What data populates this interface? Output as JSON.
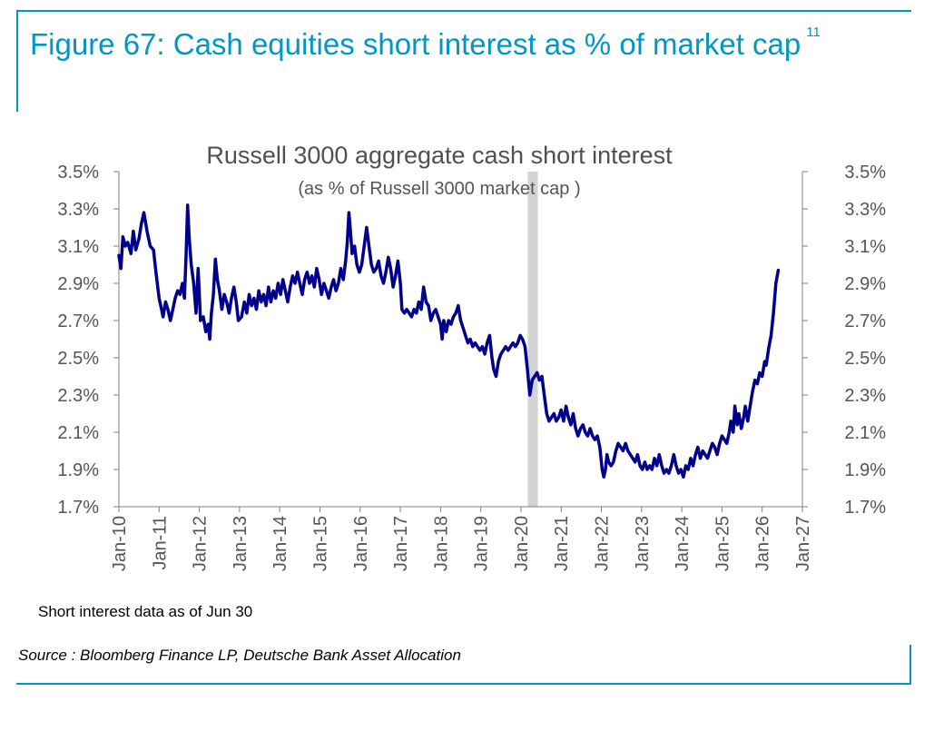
{
  "figure": {
    "title": "Figure 67: Cash equities short interest as % of market cap",
    "footnote_ref": "11",
    "note": "Short interest data as of Jun 30",
    "source": "Source : Bloomberg Finance LP, Deutsche Bank Asset Allocation"
  },
  "colors": {
    "accent": "#0097c4",
    "line": "#00008b",
    "shade": "#d3d3d3",
    "axis": "#808080"
  },
  "chart_data": {
    "type": "line",
    "title": "Russell 3000 aggregate cash short interest",
    "subtitle": "(as % of Russell 3000 market cap )",
    "xlabel": "",
    "ylabel": "",
    "ylim": [
      1.7,
      3.5
    ],
    "xlim": [
      2010.0,
      2027.0
    ],
    "grid": false,
    "y_ticks": [
      "1.7%",
      "1.9%",
      "2.1%",
      "2.3%",
      "2.5%",
      "2.7%",
      "2.9%",
      "3.1%",
      "3.3%",
      "3.5%"
    ],
    "y_tick_values": [
      1.7,
      1.9,
      2.1,
      2.3,
      2.5,
      2.7,
      2.9,
      3.1,
      3.3,
      3.5
    ],
    "x_ticks": [
      "Jan-10",
      "Jan-11",
      "Jan-12",
      "Jan-13",
      "Jan-14",
      "Jan-15",
      "Jan-16",
      "Jan-17",
      "Jan-18",
      "Jan-19",
      "Jan-20",
      "Jan-21",
      "Jan-22",
      "Jan-23",
      "Jan-24",
      "Jan-25",
      "Jan-26",
      "Jan-27"
    ],
    "x_tick_values": [
      2010,
      2011,
      2012,
      2013,
      2014,
      2015,
      2016,
      2017,
      2018,
      2019,
      2020,
      2021,
      2022,
      2023,
      2024,
      2025,
      2026,
      2027
    ],
    "shaded_region": [
      2020.17,
      2020.42
    ],
    "series": [
      {
        "points": [
          [
            2010.0,
            3.05
          ],
          [
            2010.05,
            2.98
          ],
          [
            2010.1,
            3.15
          ],
          [
            2010.16,
            3.1
          ],
          [
            2010.22,
            3.12
          ],
          [
            2010.3,
            3.06
          ],
          [
            2010.36,
            3.18
          ],
          [
            2010.42,
            3.08
          ],
          [
            2010.5,
            3.14
          ],
          [
            2010.56,
            3.22
          ],
          [
            2010.62,
            3.28
          ],
          [
            2010.7,
            3.18
          ],
          [
            2010.78,
            3.1
          ],
          [
            2010.86,
            3.08
          ],
          [
            2010.92,
            2.96
          ],
          [
            2011.0,
            2.82
          ],
          [
            2011.06,
            2.76
          ],
          [
            2011.1,
            2.72
          ],
          [
            2011.16,
            2.8
          ],
          [
            2011.22,
            2.76
          ],
          [
            2011.28,
            2.7
          ],
          [
            2011.34,
            2.76
          ],
          [
            2011.4,
            2.82
          ],
          [
            2011.46,
            2.86
          ],
          [
            2011.52,
            2.84
          ],
          [
            2011.58,
            2.9
          ],
          [
            2011.63,
            2.82
          ],
          [
            2011.67,
            3.05
          ],
          [
            2011.71,
            3.32
          ],
          [
            2011.75,
            3.14
          ],
          [
            2011.8,
            3.0
          ],
          [
            2011.86,
            2.9
          ],
          [
            2011.92,
            2.74
          ],
          [
            2011.97,
            2.98
          ],
          [
            2012.03,
            2.7
          ],
          [
            2012.1,
            2.72
          ],
          [
            2012.16,
            2.64
          ],
          [
            2012.22,
            2.68
          ],
          [
            2012.26,
            2.6
          ],
          [
            2012.3,
            2.74
          ],
          [
            2012.35,
            2.84
          ],
          [
            2012.4,
            3.03
          ],
          [
            2012.45,
            2.92
          ],
          [
            2012.5,
            2.86
          ],
          [
            2012.56,
            2.76
          ],
          [
            2012.62,
            2.84
          ],
          [
            2012.68,
            2.8
          ],
          [
            2012.74,
            2.74
          ],
          [
            2012.8,
            2.82
          ],
          [
            2012.86,
            2.88
          ],
          [
            2012.92,
            2.8
          ],
          [
            2012.97,
            2.7
          ],
          [
            2013.05,
            2.72
          ],
          [
            2013.12,
            2.8
          ],
          [
            2013.18,
            2.74
          ],
          [
            2013.24,
            2.84
          ],
          [
            2013.3,
            2.78
          ],
          [
            2013.36,
            2.82
          ],
          [
            2013.42,
            2.76
          ],
          [
            2013.48,
            2.86
          ],
          [
            2013.54,
            2.8
          ],
          [
            2013.6,
            2.84
          ],
          [
            2013.66,
            2.78
          ],
          [
            2013.72,
            2.88
          ],
          [
            2013.78,
            2.8
          ],
          [
            2013.84,
            2.86
          ],
          [
            2013.9,
            2.82
          ],
          [
            2013.96,
            2.9
          ],
          [
            2014.02,
            2.84
          ],
          [
            2014.08,
            2.92
          ],
          [
            2014.14,
            2.86
          ],
          [
            2014.2,
            2.8
          ],
          [
            2014.26,
            2.88
          ],
          [
            2014.32,
            2.94
          ],
          [
            2014.38,
            2.9
          ],
          [
            2014.44,
            2.96
          ],
          [
            2014.5,
            2.9
          ],
          [
            2014.56,
            2.84
          ],
          [
            2014.62,
            2.92
          ],
          [
            2014.68,
            2.96
          ],
          [
            2014.74,
            2.9
          ],
          [
            2014.8,
            2.94
          ],
          [
            2014.86,
            2.88
          ],
          [
            2014.92,
            2.98
          ],
          [
            2014.98,
            2.92
          ],
          [
            2015.04,
            2.84
          ],
          [
            2015.1,
            2.9
          ],
          [
            2015.16,
            2.86
          ],
          [
            2015.22,
            2.82
          ],
          [
            2015.28,
            2.88
          ],
          [
            2015.34,
            2.92
          ],
          [
            2015.4,
            2.86
          ],
          [
            2015.46,
            2.9
          ],
          [
            2015.52,
            2.98
          ],
          [
            2015.58,
            2.92
          ],
          [
            2015.64,
            3.02
          ],
          [
            2015.68,
            3.12
          ],
          [
            2015.72,
            3.28
          ],
          [
            2015.76,
            3.18
          ],
          [
            2015.8,
            3.06
          ],
          [
            2015.86,
            3.1
          ],
          [
            2015.92,
            3.0
          ],
          [
            2015.98,
            2.96
          ],
          [
            2016.04,
            3.0
          ],
          [
            2016.1,
            3.1
          ],
          [
            2016.16,
            3.2
          ],
          [
            2016.22,
            3.1
          ],
          [
            2016.28,
            3.0
          ],
          [
            2016.34,
            2.96
          ],
          [
            2016.4,
            2.98
          ],
          [
            2016.46,
            3.02
          ],
          [
            2016.52,
            2.94
          ],
          [
            2016.58,
            2.9
          ],
          [
            2016.64,
            2.96
          ],
          [
            2016.7,
            3.04
          ],
          [
            2016.76,
            2.98
          ],
          [
            2016.82,
            2.88
          ],
          [
            2016.88,
            2.94
          ],
          [
            2016.94,
            3.02
          ],
          [
            2017.0,
            2.9
          ],
          [
            2017.04,
            2.76
          ],
          [
            2017.1,
            2.74
          ],
          [
            2017.16,
            2.76
          ],
          [
            2017.22,
            2.74
          ],
          [
            2017.28,
            2.72
          ],
          [
            2017.34,
            2.76
          ],
          [
            2017.4,
            2.74
          ],
          [
            2017.46,
            2.8
          ],
          [
            2017.52,
            2.76
          ],
          [
            2017.58,
            2.88
          ],
          [
            2017.64,
            2.8
          ],
          [
            2017.7,
            2.78
          ],
          [
            2017.76,
            2.7
          ],
          [
            2017.82,
            2.74
          ],
          [
            2017.88,
            2.76
          ],
          [
            2017.94,
            2.72
          ],
          [
            2018.0,
            2.68
          ],
          [
            2018.04,
            2.6
          ],
          [
            2018.08,
            2.7
          ],
          [
            2018.14,
            2.64
          ],
          [
            2018.2,
            2.7
          ],
          [
            2018.26,
            2.68
          ],
          [
            2018.32,
            2.72
          ],
          [
            2018.38,
            2.74
          ],
          [
            2018.44,
            2.78
          ],
          [
            2018.5,
            2.7
          ],
          [
            2018.56,
            2.66
          ],
          [
            2018.62,
            2.62
          ],
          [
            2018.68,
            2.58
          ],
          [
            2018.74,
            2.6
          ],
          [
            2018.8,
            2.56
          ],
          [
            2018.86,
            2.58
          ],
          [
            2018.92,
            2.56
          ],
          [
            2018.98,
            2.54
          ],
          [
            2019.04,
            2.56
          ],
          [
            2019.1,
            2.52
          ],
          [
            2019.16,
            2.58
          ],
          [
            2019.22,
            2.62
          ],
          [
            2019.28,
            2.5
          ],
          [
            2019.32,
            2.44
          ],
          [
            2019.38,
            2.4
          ],
          [
            2019.44,
            2.48
          ],
          [
            2019.5,
            2.52
          ],
          [
            2019.56,
            2.54
          ],
          [
            2019.62,
            2.56
          ],
          [
            2019.68,
            2.54
          ],
          [
            2019.74,
            2.56
          ],
          [
            2019.8,
            2.58
          ],
          [
            2019.86,
            2.56
          ],
          [
            2019.92,
            2.58
          ],
          [
            2019.98,
            2.62
          ],
          [
            2020.04,
            2.6
          ],
          [
            2020.1,
            2.56
          ],
          [
            2020.16,
            2.44
          ],
          [
            2020.22,
            2.3
          ],
          [
            2020.28,
            2.38
          ],
          [
            2020.34,
            2.4
          ],
          [
            2020.4,
            2.42
          ],
          [
            2020.46,
            2.38
          ],
          [
            2020.52,
            2.4
          ],
          [
            2020.58,
            2.3
          ],
          [
            2020.64,
            2.2
          ],
          [
            2020.7,
            2.16
          ],
          [
            2020.76,
            2.18
          ],
          [
            2020.82,
            2.2
          ],
          [
            2020.88,
            2.16
          ],
          [
            2020.94,
            2.18
          ],
          [
            2021.0,
            2.22
          ],
          [
            2021.06,
            2.16
          ],
          [
            2021.12,
            2.24
          ],
          [
            2021.18,
            2.18
          ],
          [
            2021.24,
            2.14
          ],
          [
            2021.3,
            2.2
          ],
          [
            2021.36,
            2.12
          ],
          [
            2021.42,
            2.08
          ],
          [
            2021.48,
            2.12
          ],
          [
            2021.54,
            2.14
          ],
          [
            2021.6,
            2.1
          ],
          [
            2021.66,
            2.08
          ],
          [
            2021.72,
            2.12
          ],
          [
            2021.78,
            2.08
          ],
          [
            2021.84,
            2.06
          ],
          [
            2021.9,
            2.08
          ],
          [
            2021.96,
            2.02
          ],
          [
            2022.02,
            1.9
          ],
          [
            2022.06,
            1.86
          ],
          [
            2022.1,
            1.9
          ],
          [
            2022.14,
            1.98
          ],
          [
            2022.18,
            1.94
          ],
          [
            2022.24,
            1.92
          ],
          [
            2022.3,
            1.94
          ],
          [
            2022.36,
            2.0
          ],
          [
            2022.42,
            2.04
          ],
          [
            2022.48,
            2.02
          ],
          [
            2022.54,
            2.0
          ],
          [
            2022.6,
            2.04
          ],
          [
            2022.66,
            2.0
          ],
          [
            2022.72,
            1.98
          ],
          [
            2022.78,
            1.96
          ],
          [
            2022.84,
            1.94
          ],
          [
            2022.9,
            1.98
          ],
          [
            2022.96,
            1.92
          ],
          [
            2023.02,
            1.9
          ],
          [
            2023.08,
            1.94
          ],
          [
            2023.14,
            1.9
          ],
          [
            2023.2,
            1.92
          ],
          [
            2023.26,
            1.9
          ],
          [
            2023.32,
            1.96
          ],
          [
            2023.38,
            1.92
          ],
          [
            2023.44,
            1.98
          ],
          [
            2023.5,
            1.92
          ],
          [
            2023.56,
            1.88
          ],
          [
            2023.62,
            1.9
          ],
          [
            2023.68,
            1.88
          ],
          [
            2023.74,
            1.92
          ],
          [
            2023.8,
            1.98
          ],
          [
            2023.86,
            1.92
          ],
          [
            2023.92,
            1.88
          ],
          [
            2023.98,
            1.9
          ],
          [
            2024.04,
            1.86
          ],
          [
            2024.1,
            1.92
          ],
          [
            2024.16,
            1.9
          ],
          [
            2024.22,
            1.96
          ],
          [
            2024.28,
            1.92
          ],
          [
            2024.34,
            1.98
          ],
          [
            2024.4,
            2.02
          ],
          [
            2024.46,
            1.96
          ],
          [
            2024.52,
            2.0
          ],
          [
            2024.58,
            1.98
          ],
          [
            2024.64,
            1.96
          ],
          [
            2024.7,
            2.0
          ],
          [
            2024.76,
            2.04
          ],
          [
            2024.82,
            2.02
          ],
          [
            2024.88,
            1.98
          ],
          [
            2024.94,
            2.04
          ],
          [
            2025.0,
            2.08
          ],
          [
            2025.06,
            2.06
          ],
          [
            2025.12,
            2.04
          ],
          [
            2025.18,
            2.1
          ],
          [
            2025.22,
            2.16
          ],
          [
            2025.28,
            2.1
          ],
          [
            2025.32,
            2.24
          ],
          [
            2025.38,
            2.14
          ],
          [
            2025.42,
            2.2
          ],
          [
            2025.48,
            2.12
          ],
          [
            2025.54,
            2.18
          ],
          [
            2025.58,
            2.24
          ],
          [
            2025.64,
            2.16
          ],
          [
            2025.7,
            2.24
          ],
          [
            2025.76,
            2.32
          ],
          [
            2025.82,
            2.38
          ],
          [
            2025.88,
            2.36
          ],
          [
            2025.94,
            2.42
          ],
          [
            2026.0,
            2.4
          ],
          [
            2026.06,
            2.48
          ],
          [
            2026.1,
            2.46
          ],
          [
            2026.16,
            2.55
          ],
          [
            2026.22,
            2.62
          ],
          [
            2026.28,
            2.74
          ],
          [
            2026.34,
            2.9
          ],
          [
            2026.4,
            2.97
          ]
        ]
      }
    ]
  }
}
